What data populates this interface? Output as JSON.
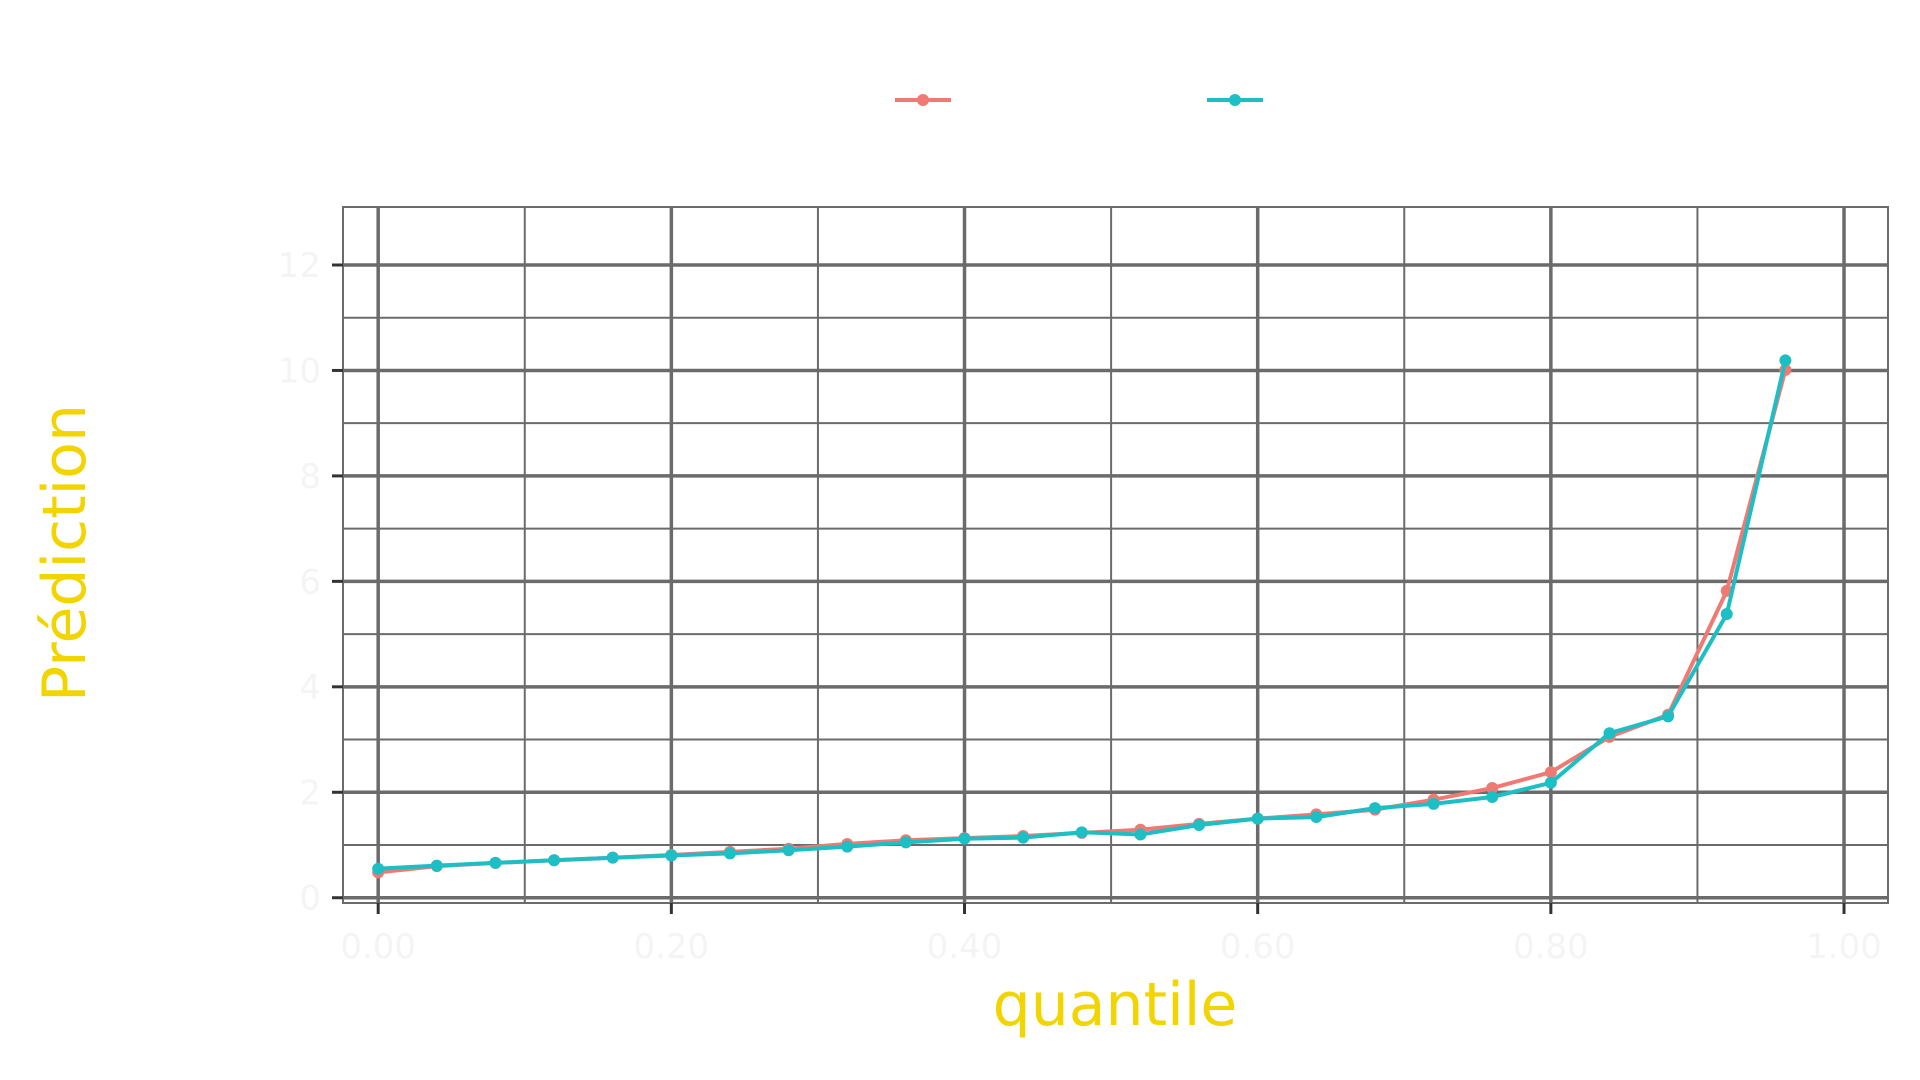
{
  "chart_data": {
    "type": "line",
    "title": "",
    "xlabel": "quantile",
    "ylabel": "Prédiction",
    "x": [
      0.0,
      0.04,
      0.08,
      0.12,
      0.16,
      0.2,
      0.24,
      0.28,
      0.32,
      0.36,
      0.4,
      0.44,
      0.48,
      0.52,
      0.56,
      0.6,
      0.64,
      0.68,
      0.72,
      0.76,
      0.8,
      0.84,
      0.88,
      0.92,
      0.96
    ],
    "series": [
      {
        "name": "",
        "color": "#f07a73",
        "values": [
          0.48,
          0.6,
          0.66,
          0.71,
          0.76,
          0.81,
          0.87,
          0.93,
          1.02,
          1.09,
          1.13,
          1.17,
          1.23,
          1.29,
          1.4,
          1.5,
          1.58,
          1.67,
          1.86,
          2.08,
          2.38,
          3.05,
          3.47,
          5.82,
          10.01
        ]
      },
      {
        "name": "",
        "color": "#1ebfc4",
        "values": [
          0.55,
          0.61,
          0.66,
          0.71,
          0.76,
          0.8,
          0.84,
          0.9,
          0.97,
          1.05,
          1.12,
          1.14,
          1.24,
          1.2,
          1.38,
          1.5,
          1.53,
          1.7,
          1.78,
          1.91,
          2.18,
          3.12,
          3.44,
          5.38,
          10.19
        ]
      }
    ],
    "xlim": [
      -0.024,
      1.03
    ],
    "ylim": [
      -0.1,
      13.1
    ],
    "grid": true,
    "legend": "top"
  }
}
